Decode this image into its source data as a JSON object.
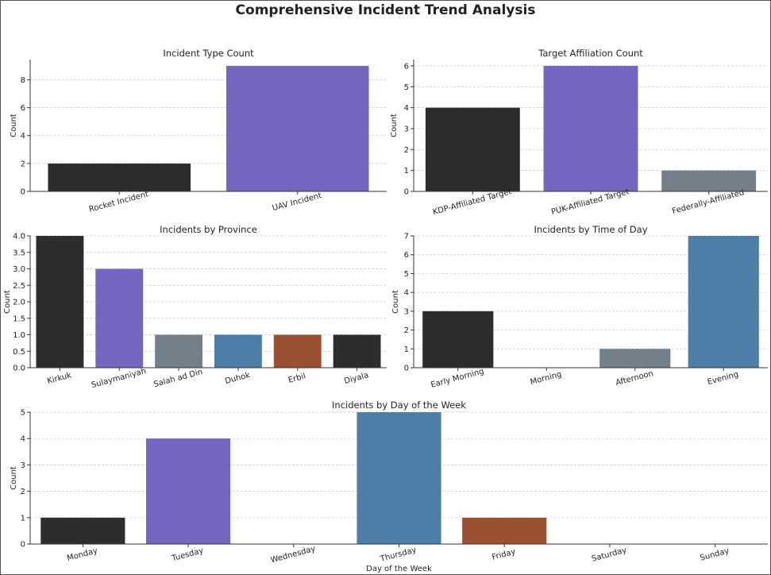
{
  "figure": {
    "title": "Comprehensive Incident Trend Analysis"
  },
  "colors": {
    "charcoal": "#2d2d2d",
    "purple": "#7566c0",
    "slate": "#738089",
    "steel_blue": "#4d7ea8",
    "rust": "#9b5032"
  },
  "chart_data": [
    {
      "id": "type",
      "type": "bar",
      "title": "Incident Type Count",
      "xlabel": "",
      "ylabel": "Count",
      "categories": [
        "Rocket Incident",
        "UAV Incident"
      ],
      "values": [
        2,
        9
      ],
      "colors": [
        "#2d2d2d",
        "#7566c0"
      ],
      "ylim": [
        0,
        9.45
      ],
      "yticks": [
        0,
        2,
        4,
        6,
        8
      ],
      "grid": "y"
    },
    {
      "id": "affiliation",
      "type": "bar",
      "title": "Target Affiliation Count",
      "xlabel": "",
      "ylabel": "Count",
      "categories": [
        "KDP-Affiliated Target",
        "PUK-Affiliated Target",
        "Federally-Affiliated"
      ],
      "values": [
        4,
        6,
        1
      ],
      "colors": [
        "#2d2d2d",
        "#7566c0",
        "#738089"
      ],
      "ylim": [
        0,
        6.3
      ],
      "yticks": [
        0,
        1,
        2,
        3,
        4,
        5,
        6
      ],
      "grid": "y"
    },
    {
      "id": "province",
      "type": "bar",
      "title": "Incidents by Province",
      "xlabel": "",
      "ylabel": "Count",
      "categories": [
        "Kirkuk",
        "Sulaymaniyah",
        "Salah ad Din",
        "Duhok",
        "Erbil",
        "Diyala"
      ],
      "values": [
        4,
        3,
        1,
        1,
        1,
        1
      ],
      "colors": [
        "#2d2d2d",
        "#7566c0",
        "#738089",
        "#4d7ea8",
        "#9b5032",
        "#2d2d2d"
      ],
      "ylim": [
        0,
        4.0
      ],
      "yticks": [
        0.0,
        0.5,
        1.0,
        1.5,
        2.0,
        2.5,
        3.0,
        3.5,
        4.0
      ],
      "ytick_decimals": 1,
      "grid": "y"
    },
    {
      "id": "timeofday",
      "type": "bar",
      "title": "Incidents by Time of Day",
      "xlabel": "",
      "ylabel": "Count",
      "categories": [
        "Early Morning",
        "Morning",
        "Afternoon",
        "Evening"
      ],
      "values": [
        3,
        0,
        1,
        7
      ],
      "colors": [
        "#2d2d2d",
        "#7566c0",
        "#738089",
        "#4d7ea8"
      ],
      "ylim": [
        0,
        7.0
      ],
      "yticks": [
        0,
        1,
        2,
        3,
        4,
        5,
        6,
        7
      ],
      "grid": "y"
    },
    {
      "id": "dayofweek",
      "type": "bar",
      "title": "Incidents by Day of the Week",
      "xlabel": "Day of the Week",
      "ylabel": "Count",
      "categories": [
        "Monday",
        "Tuesday",
        "Wednesday",
        "Thursday",
        "Friday",
        "Saturday",
        "Sunday"
      ],
      "values": [
        1,
        4,
        0,
        5,
        1,
        0,
        0
      ],
      "colors": [
        "#2d2d2d",
        "#7566c0",
        "#738089",
        "#4d7ea8",
        "#9b5032",
        "#2d2d2d",
        "#7566c0"
      ],
      "ylim": [
        0,
        5.0
      ],
      "yticks": [
        0,
        1,
        2,
        3,
        4,
        5
      ],
      "grid": "y"
    }
  ]
}
